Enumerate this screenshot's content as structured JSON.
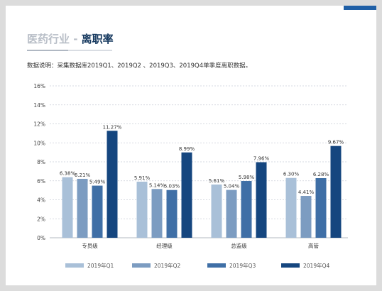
{
  "title": {
    "prefix": "医药行业 - ",
    "main": "离职率"
  },
  "note": "数据说明：采集数据库2019Q1、2019Q2 、2019Q3、2019Q4单季度离职数据。",
  "colors": {
    "accent": "#1f5fa6",
    "series": [
      "#a9c0d8",
      "#7c9cc1",
      "#3f6fa6",
      "#15467f"
    ]
  },
  "chart_data": {
    "type": "bar",
    "categories": [
      "专员级",
      "经理级",
      "总监级",
      "高管"
    ],
    "series": [
      {
        "name": "2019年Q1",
        "values": [
          6.38,
          5.91,
          5.61,
          6.3
        ],
        "labels": [
          "6.38%",
          "5.91%",
          "5.61%",
          "6.30%"
        ]
      },
      {
        "name": "2019年Q2",
        "values": [
          6.21,
          5.14,
          5.04,
          4.41
        ],
        "labels": [
          "6.21%",
          "5.14%",
          "5.04%",
          "4.41%"
        ]
      },
      {
        "name": "2019年Q3",
        "values": [
          5.49,
          5.03,
          5.98,
          6.28
        ],
        "labels": [
          "5.49%",
          "5.03%",
          "5.98%",
          "6.28%"
        ]
      },
      {
        "name": "2019年Q4",
        "values": [
          11.27,
          8.99,
          7.96,
          9.67
        ],
        "labels": [
          "11.27%",
          "8.99%",
          "7.96%",
          "9.67%"
        ]
      }
    ],
    "ylim": [
      0,
      16
    ],
    "yticks": [
      "0%",
      "2%",
      "4%",
      "6%",
      "8%",
      "10%",
      "12%",
      "14%",
      "16%"
    ],
    "grid": true,
    "legend_position": "bottom"
  }
}
